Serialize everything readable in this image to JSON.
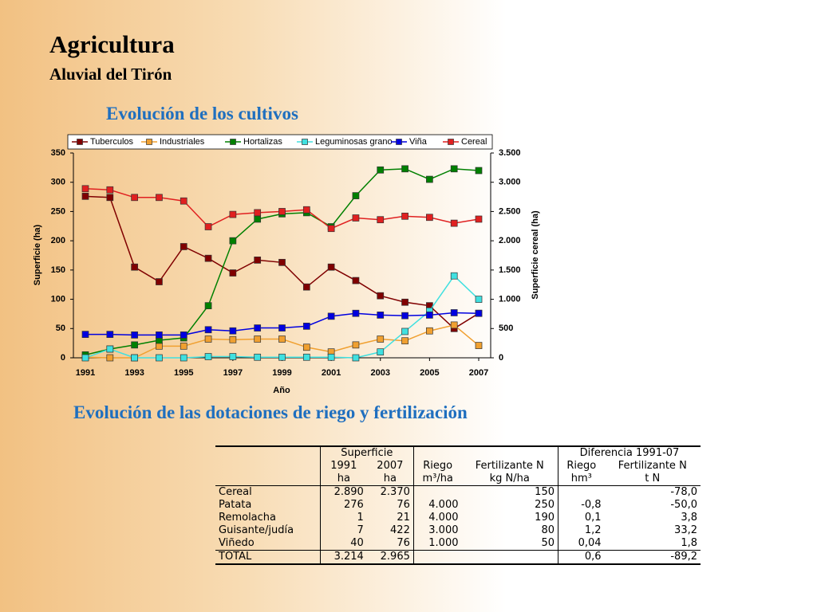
{
  "header": {
    "title": "Agricultura",
    "subtitle": "Aluvial del Tirón"
  },
  "chart_data": {
    "type": "line",
    "title": "Evolución de los cultivos",
    "x_label": "Año",
    "y_label": "Superficie (ha)",
    "y2_label": "Superficie cereal (ha)",
    "x": [
      1991,
      1992,
      1993,
      1994,
      1995,
      1996,
      1997,
      1998,
      1999,
      2000,
      2001,
      2002,
      2003,
      2004,
      2005,
      2006,
      2007
    ],
    "xlim": [
      1991,
      2007
    ],
    "xticks": [
      1991,
      1993,
      1995,
      1997,
      1999,
      2001,
      2003,
      2005,
      2007
    ],
    "ylim": [
      0,
      350
    ],
    "yticks": [
      0,
      50,
      100,
      150,
      200,
      250,
      300,
      350
    ],
    "y2lim": [
      0,
      3500
    ],
    "y2ticks": [
      0,
      {
        "value": 500,
        "label": "500"
      },
      {
        "value": 1000,
        "label": "1.000"
      },
      {
        "value": 1500,
        "label": "1.500"
      },
      {
        "value": 2000,
        "label": "2.000"
      },
      {
        "value": 2500,
        "label": "2.500"
      },
      {
        "value": 3000,
        "label": "3.000"
      },
      {
        "value": 3500,
        "label": "3.500"
      }
    ],
    "legend": "top",
    "series": [
      {
        "name": "Tuberculos",
        "color": "#800000",
        "values": [
          276,
          274,
          155,
          130,
          190,
          170,
          145,
          167,
          163,
          121,
          155,
          132,
          106,
          95,
          89,
          50,
          76
        ]
      },
      {
        "name": "Industriales",
        "color": "#f0a030",
        "values": [
          1,
          0,
          0,
          20,
          20,
          32,
          31,
          32,
          32,
          18,
          10,
          22,
          32,
          29,
          46,
          56,
          21
        ]
      },
      {
        "name": "Hortalizas",
        "color": "#008000",
        "values": [
          5,
          15,
          22,
          30,
          34,
          89,
          200,
          237,
          246,
          248,
          224,
          277,
          321,
          323,
          305,
          323,
          320
        ]
      },
      {
        "name": "Leguminosas grano",
        "color": "#40e0e0",
        "values": [
          0,
          15,
          0,
          0,
          0,
          2,
          2,
          1,
          1,
          1,
          1,
          0,
          10,
          45,
          80,
          140,
          100
        ]
      },
      {
        "name": "Viña",
        "color": "#0000e0",
        "values": [
          40,
          40,
          39,
          39,
          39,
          48,
          46,
          51,
          51,
          54,
          71,
          76,
          73,
          72,
          73,
          77,
          76
        ]
      },
      {
        "name": "Cereal",
        "color": "#e02020",
        "axis": "y2",
        "values": [
          2890,
          2870,
          2740,
          2740,
          2680,
          2240,
          2450,
          2480,
          2500,
          2530,
          2210,
          2390,
          2360,
          2420,
          2400,
          2300,
          2370
        ]
      }
    ]
  },
  "table": {
    "title": "Evolución de las dotaciones de riego y fertilización",
    "group_headers": [
      "Superficie",
      "Diferencia 1991-07"
    ],
    "headers": [
      "1991",
      "2007",
      "Riego",
      "Fertilizante N",
      "Riego",
      "Fertilizante N"
    ],
    "units": [
      "ha",
      "ha",
      "m³/ha",
      "kg N/ha",
      "hm³",
      "t N"
    ],
    "rows": [
      [
        "Cereal",
        "2.890",
        "2.370",
        null,
        "150",
        null,
        "-78,0"
      ],
      [
        "Patata",
        "276",
        "76",
        "4.000",
        "250",
        "-0,8",
        "-50,0"
      ],
      [
        "Remolacha",
        "1",
        "21",
        "4.000",
        "190",
        "0,1",
        "3,8"
      ],
      [
        "Guisante/judía",
        "7",
        "422",
        "3.000",
        "80",
        "1,2",
        "33,2"
      ],
      [
        "Viñedo",
        "40",
        "76",
        "1.000",
        "50",
        "0,04",
        "1,8"
      ],
      [
        "TOTAL",
        "3.214",
        "2.965",
        null,
        null,
        "0,6",
        "-89,2"
      ]
    ]
  }
}
